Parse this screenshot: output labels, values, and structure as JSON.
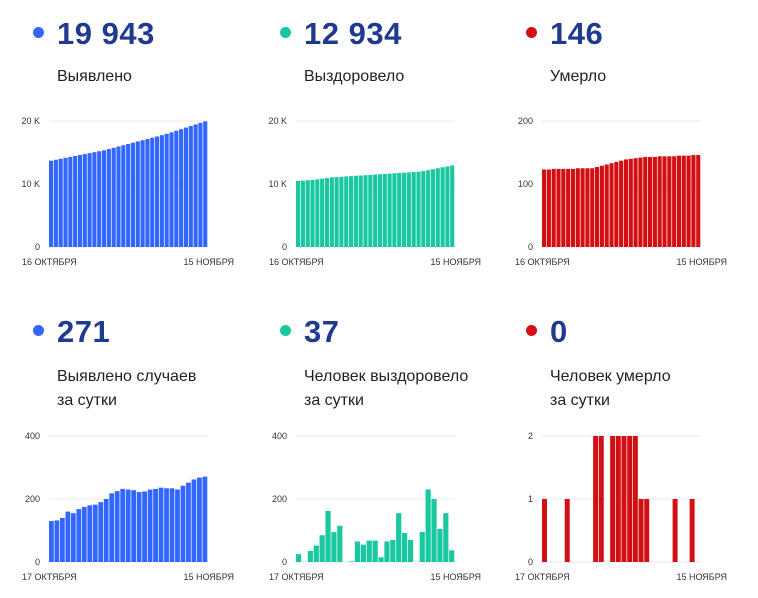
{
  "panels": [
    {
      "value": "19 943",
      "label": [
        "Выявлено"
      ],
      "color": "#3366ff"
    },
    {
      "value": "12 934",
      "label": [
        "Выздоровело"
      ],
      "color": "#19c8a0"
    },
    {
      "value": "146",
      "label": [
        "Умерло"
      ],
      "color": "#d40f14"
    },
    {
      "value": "271",
      "label": [
        "Выявлено случаев",
        "за сутки"
      ],
      "color": "#3366ff"
    },
    {
      "value": "37",
      "label": [
        "Человек выздоровело",
        "за сутки"
      ],
      "color": "#19c8a0"
    },
    {
      "value": "0",
      "label": [
        "Человек умерло",
        "за сутки"
      ],
      "color": "#d40f14"
    }
  ],
  "chart_data": [
    {
      "type": "bar",
      "x_start": "16 ОКТЯБРЯ",
      "x_end": "15 НОЯБРЯ",
      "yticks": [
        {
          "v": 0,
          "t": "0"
        },
        {
          "v": 10000,
          "t": "10 K"
        },
        {
          "v": 20000,
          "t": "20 K"
        }
      ],
      "ylim": [
        0,
        20000
      ],
      "grid": true,
      "values": [
        13700,
        13850,
        14000,
        14150,
        14300,
        14450,
        14600,
        14750,
        14900,
        15050,
        15200,
        15350,
        15550,
        15750,
        15950,
        16150,
        16350,
        16550,
        16750,
        16950,
        17150,
        17350,
        17550,
        17750,
        17950,
        18200,
        18450,
        18700,
        18950,
        19200,
        19450,
        19700,
        19943
      ]
    },
    {
      "type": "bar",
      "x_start": "16 ОКТЯБРЯ",
      "x_end": "15 НОЯБРЯ",
      "yticks": [
        {
          "v": 0,
          "t": "0"
        },
        {
          "v": 10000,
          "t": "10 K"
        },
        {
          "v": 20000,
          "t": "20 K"
        }
      ],
      "ylim": [
        0,
        20000
      ],
      "grid": true,
      "values": [
        10500,
        10550,
        10600,
        10650,
        10750,
        10850,
        10950,
        11050,
        11100,
        11150,
        11200,
        11250,
        11300,
        11350,
        11400,
        11450,
        11500,
        11550,
        11600,
        11650,
        11700,
        11750,
        11800,
        11850,
        11900,
        11950,
        12050,
        12200,
        12350,
        12500,
        12650,
        12800,
        12934
      ]
    },
    {
      "type": "bar",
      "x_start": "16 ОКТЯБРЯ",
      "x_end": "15 НОЯБРЯ",
      "yticks": [
        {
          "v": 0,
          "t": "0"
        },
        {
          "v": 100,
          "t": "100"
        },
        {
          "v": 200,
          "t": "200"
        }
      ],
      "ylim": [
        0,
        200
      ],
      "grid": true,
      "values": [
        123,
        123,
        124,
        124,
        124,
        124,
        124,
        125,
        125,
        125,
        125,
        127,
        129,
        131,
        133,
        135,
        137,
        139,
        140,
        141,
        142,
        143,
        143,
        143,
        144,
        144,
        144,
        144,
        145,
        145,
        145,
        146,
        146
      ]
    },
    {
      "type": "bar",
      "x_start": "17 ОКТЯБРЯ",
      "x_end": "15 НОЯБРЯ",
      "yticks": [
        {
          "v": 0,
          "t": "0"
        },
        {
          "v": 200,
          "t": "200"
        },
        {
          "v": 400,
          "t": "400"
        }
      ],
      "ylim": [
        0,
        400
      ],
      "grid": true,
      "values": [
        130,
        132,
        140,
        160,
        155,
        168,
        175,
        180,
        182,
        190,
        200,
        218,
        225,
        232,
        230,
        228,
        222,
        224,
        230,
        232,
        236,
        234,
        234,
        230,
        242,
        252,
        262,
        268,
        271
      ]
    },
    {
      "type": "bar",
      "x_start": "17 ОКТЯБРЯ",
      "x_end": "15 НОЯБРЯ",
      "yticks": [
        {
          "v": 0,
          "t": "0"
        },
        {
          "v": 200,
          "t": "200"
        },
        {
          "v": 400,
          "t": "400"
        }
      ],
      "ylim": [
        0,
        400
      ],
      "grid": true,
      "values": [
        25,
        0,
        35,
        52,
        85,
        162,
        95,
        115,
        0,
        2,
        65,
        55,
        68,
        68,
        15,
        65,
        70,
        155,
        92,
        70,
        0,
        95,
        230,
        200,
        105,
        155,
        37
      ]
    },
    {
      "type": "bar",
      "x_start": "17 ОКТЯБРЯ",
      "x_end": "15 НОЯБРЯ",
      "yticks": [
        {
          "v": 0,
          "t": "0"
        },
        {
          "v": 1,
          "t": "1"
        },
        {
          "v": 2,
          "t": "2"
        }
      ],
      "ylim": [
        0,
        2
      ],
      "grid": true,
      "values": [
        1,
        0,
        0,
        0,
        1,
        0,
        0,
        0,
        0,
        2,
        2,
        0,
        2,
        2,
        2,
        2,
        2,
        1,
        1,
        0,
        0,
        0,
        0,
        1,
        0,
        0,
        1,
        0
      ]
    }
  ]
}
